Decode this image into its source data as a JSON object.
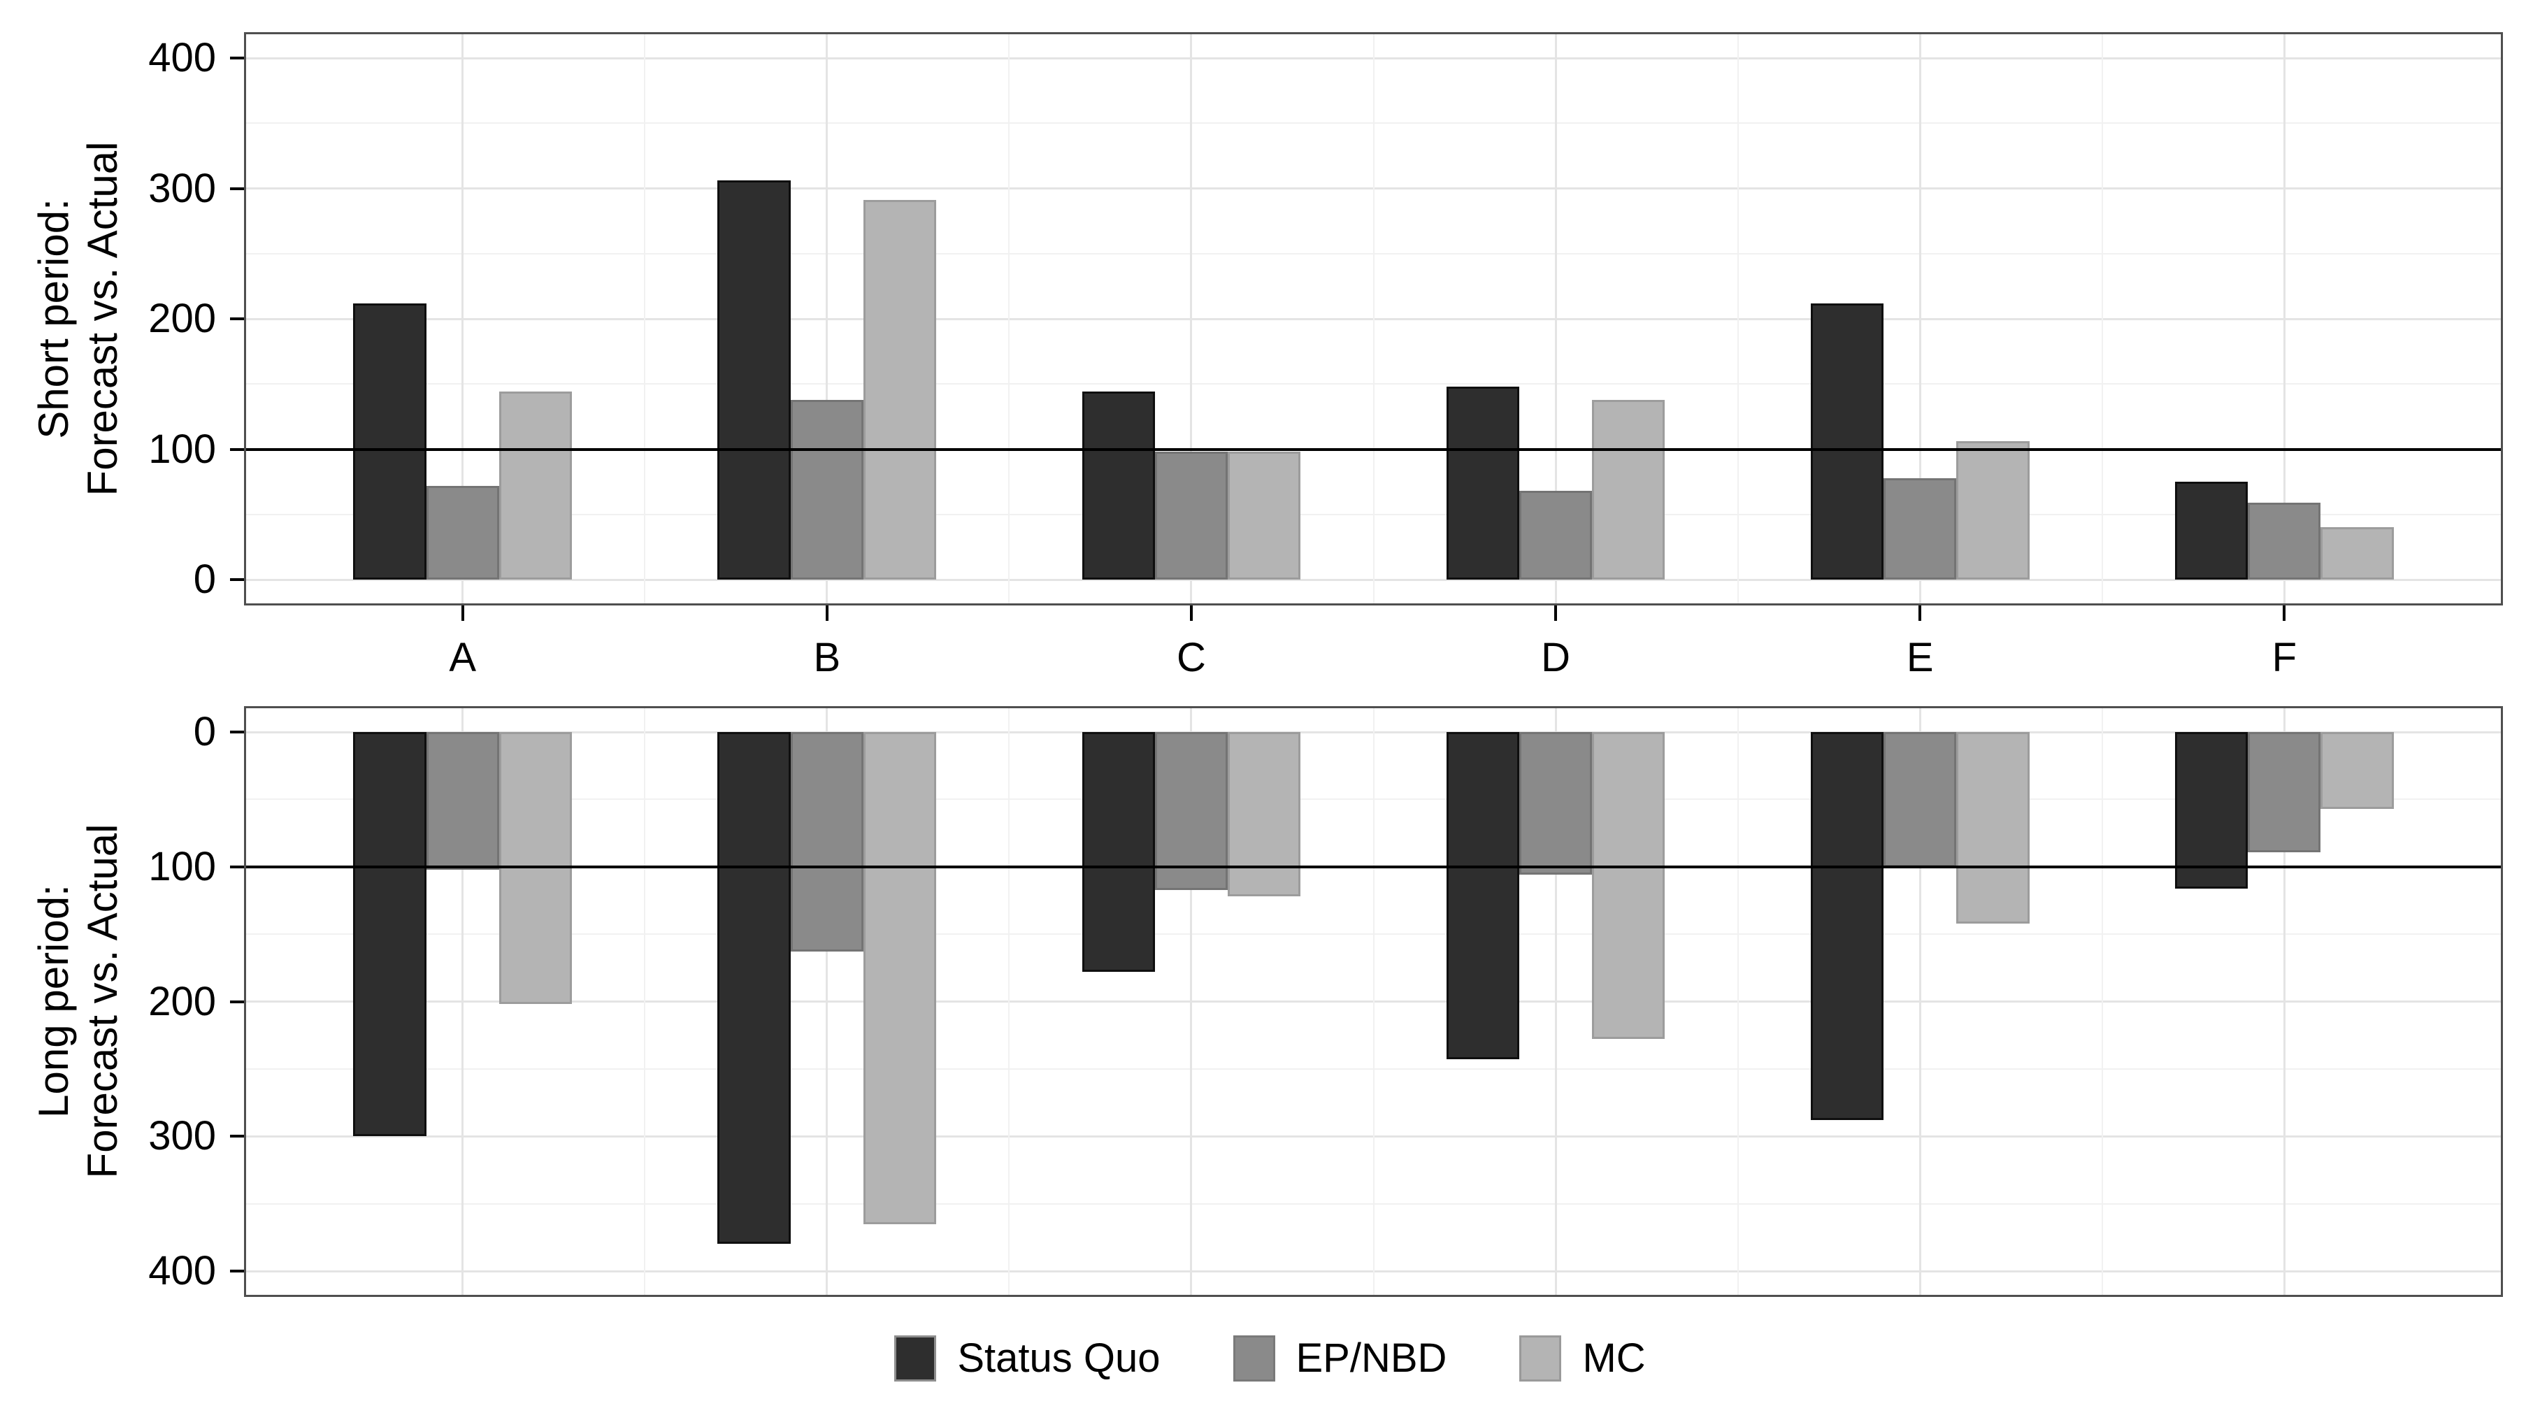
{
  "chart_data": {
    "type": "bar",
    "categories": [
      "A",
      "B",
      "C",
      "D",
      "E",
      "F"
    ],
    "legend_position": "bottom",
    "grid": true,
    "reference_line": 100,
    "yticks": [
      0,
      100,
      200,
      300,
      400
    ],
    "ylim": [
      0,
      400
    ],
    "panels": [
      {
        "id": "short",
        "ylabel_line1": "Short period:",
        "ylabel_line2": "Forecast vs. Actual",
        "y_direction": "up",
        "series": [
          {
            "name": "Status Quo",
            "values": [
              212,
              306,
              144,
              148,
              212,
              75
            ]
          },
          {
            "name": "EP/NBD",
            "values": [
              72,
              138,
              98,
              68,
              78,
              59
            ]
          },
          {
            "name": "MC",
            "values": [
              144,
              291,
              98,
              138,
              106,
              40
            ]
          }
        ]
      },
      {
        "id": "long",
        "ylabel_line1": "Long period:",
        "ylabel_line2": "Forecast vs. Actual",
        "y_direction": "down",
        "series": [
          {
            "name": "Status Quo",
            "values": [
              300,
              380,
              178,
              243,
              288,
              116
            ]
          },
          {
            "name": "EP/NBD",
            "values": [
              102,
              163,
              117,
              106,
              100,
              89
            ]
          },
          {
            "name": "MC",
            "values": [
              202,
              365,
              122,
              228,
              142,
              57
            ]
          }
        ]
      }
    ]
  },
  "colors": {
    "status_quo_fill": "#2e2e2e",
    "status_quo_border": "#0f0f0f",
    "epnbd_fill": "#8a8a8a",
    "epnbd_border": "#747474",
    "mc_fill": "#b4b4b4",
    "mc_border": "#9c9c9c",
    "grid_major": "#e4e4e4",
    "grid_minor": "#f1f1f1",
    "panel_border": "#4f4f4f",
    "reference_line": "#000000"
  },
  "legend": {
    "items": [
      {
        "label": "Status Quo",
        "fill": "#2e2e2e",
        "border": "#8e8e8e"
      },
      {
        "label": "EP/NBD",
        "fill": "#8a8a8a",
        "border": "#7a7a7a"
      },
      {
        "label": "MC",
        "fill": "#b4b4b4",
        "border": "#9a9a9a"
      }
    ]
  }
}
